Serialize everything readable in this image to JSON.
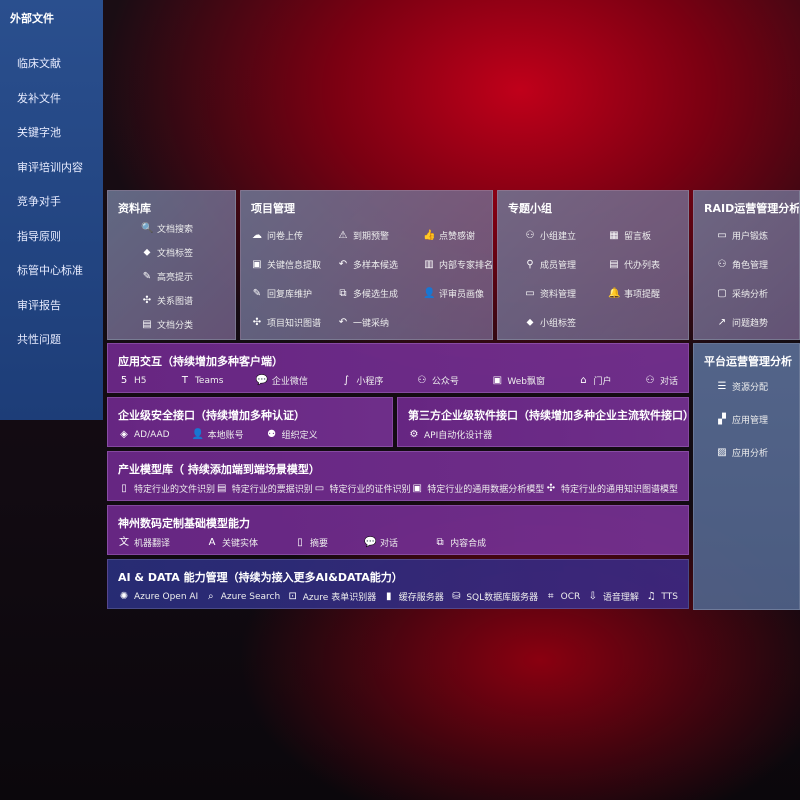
{
  "left": {
    "title": "外部文件",
    "items": [
      "临床文献",
      "发补文件",
      "关键字池",
      "审评培训内容",
      "竞争对手",
      "指导原则",
      "标管中心标准",
      "审评报告",
      "共性问题"
    ]
  },
  "library": {
    "title": "资料库",
    "items": [
      {
        "icon": "doc-search",
        "label": "文档搜索"
      },
      {
        "icon": "tag",
        "label": "文档标签"
      },
      {
        "icon": "pen",
        "label": "高亮提示"
      },
      {
        "icon": "graph",
        "label": "关系图谱"
      },
      {
        "icon": "docs",
        "label": "文档分类"
      }
    ]
  },
  "project": {
    "title": "项目管理",
    "items": [
      {
        "icon": "cloud-upload",
        "label": "问卷上传"
      },
      {
        "icon": "alarm",
        "label": "到期预警"
      },
      {
        "icon": "thumbs-up",
        "label": "点赞感谢"
      },
      {
        "icon": "window",
        "label": "关键信息提取"
      },
      {
        "icon": "reply",
        "label": "多样本候选"
      },
      {
        "icon": "ranking",
        "label": "内部专家排名"
      },
      {
        "icon": "pen",
        "label": "回复库维护"
      },
      {
        "icon": "puzzle",
        "label": "多候选生成"
      },
      {
        "icon": "user",
        "label": "评审员画像"
      },
      {
        "icon": "graph",
        "label": "项目知识图谱"
      },
      {
        "icon": "reply",
        "label": "一键采纳"
      }
    ]
  },
  "group": {
    "title": "专题小组",
    "items": [
      {
        "icon": "users",
        "label": "小组建立"
      },
      {
        "icon": "bbs",
        "label": "留言板"
      },
      {
        "icon": "user-add",
        "label": "成员管理"
      },
      {
        "icon": "clipboard",
        "label": "代办列表"
      },
      {
        "icon": "folder",
        "label": "资料管理"
      },
      {
        "icon": "bell",
        "label": "事项提醒"
      },
      {
        "icon": "tag",
        "label": "小组标签"
      }
    ]
  },
  "raid": {
    "title": "RAID运营管理分析",
    "items": [
      {
        "icon": "id-card",
        "label": "用户锻炼"
      },
      {
        "icon": "users",
        "label": "角色管理"
      },
      {
        "icon": "qa",
        "label": "采纳分析"
      },
      {
        "icon": "trend",
        "label": "问题趋势"
      }
    ]
  },
  "platform": {
    "title": "平台运营管理分析",
    "items": [
      {
        "icon": "list",
        "label": "资源分配"
      },
      {
        "icon": "apps",
        "label": "应用管理"
      },
      {
        "icon": "chart",
        "label": "应用分析"
      }
    ]
  },
  "app": {
    "title": "应用交互（持续增加多种客户端）",
    "items": [
      {
        "icon": "html5",
        "label": "H5"
      },
      {
        "icon": "teams",
        "label": "Teams"
      },
      {
        "icon": "chat",
        "label": "企业微信"
      },
      {
        "icon": "miniprogram",
        "label": "小程序"
      },
      {
        "icon": "users",
        "label": "公众号"
      },
      {
        "icon": "window",
        "label": "Web飘窗"
      },
      {
        "icon": "portal",
        "label": "门户"
      },
      {
        "icon": "dialog",
        "label": "对话"
      }
    ]
  },
  "security": {
    "title": "企业级安全接口（持续增加多种认证）",
    "items": [
      {
        "icon": "diamond",
        "label": "AD/AAD"
      },
      {
        "icon": "user",
        "label": "本地账号"
      },
      {
        "icon": "org",
        "label": "组织定义"
      }
    ]
  },
  "thirdparty": {
    "title": "第三方企业级软件接口（持续增加多种企业主流软件接口）",
    "items": [
      {
        "icon": "gear",
        "label": "API自动化设计器"
      }
    ]
  },
  "industry": {
    "title": "产业模型库（ 持续添加端到端场景模型）",
    "items": [
      {
        "icon": "doc",
        "label": "特定行业的文件识别"
      },
      {
        "icon": "receipt",
        "label": "特定行业的票据识别"
      },
      {
        "icon": "id-card",
        "label": "特定行业的证件识别"
      },
      {
        "icon": "image",
        "label": "特定行业的通用数据分析模型"
      },
      {
        "icon": "graph",
        "label": "特定行业的通用知识图谱模型"
      }
    ]
  },
  "base": {
    "title": "神州数码定制基础模型能力",
    "items": [
      {
        "icon": "translate",
        "label": "机器翻译"
      },
      {
        "icon": "entity",
        "label": "关键实体"
      },
      {
        "icon": "doc",
        "label": "摘要"
      },
      {
        "icon": "chat",
        "label": "对话"
      },
      {
        "icon": "puzzle",
        "label": "内容合成"
      }
    ]
  },
  "ai": {
    "title": "AI & DATA 能力管理（持续为接入更多AI&DATA能力）",
    "items": [
      {
        "icon": "openai",
        "label": "Azure Open AI"
      },
      {
        "icon": "search",
        "label": "Azure Search"
      },
      {
        "icon": "form",
        "label": "Azure 表单识别器"
      },
      {
        "icon": "cache",
        "label": "缓存服务器"
      },
      {
        "icon": "sql",
        "label": "SQL数据库服务器"
      },
      {
        "icon": "ocr",
        "label": "OCR"
      },
      {
        "icon": "voice",
        "label": "语音理解"
      },
      {
        "icon": "tts",
        "label": "TTS"
      }
    ]
  }
}
